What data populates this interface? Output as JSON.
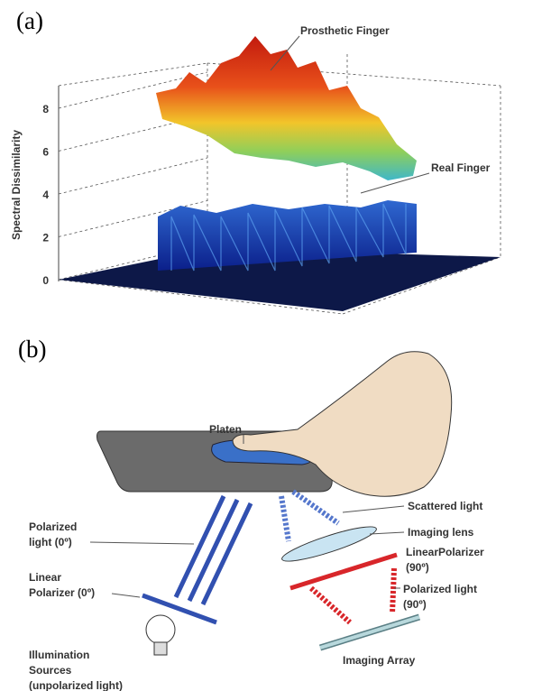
{
  "panel_a": {
    "label": "(a)",
    "y_label": "Spectral Dissimilarity",
    "yticks": [
      0,
      2,
      4,
      6,
      8
    ],
    "annotations": [
      "Prosthetic Finger",
      "Real Finger"
    ]
  },
  "panel_b": {
    "label": "(b)",
    "platen": "Platen",
    "polarized_light_0": [
      "Polarized",
      "light (0º)"
    ],
    "linear_polarizer_0": [
      "Linear",
      "Polarizer (0º)"
    ],
    "illumination": [
      "Illumination",
      "Sources",
      "(unpolarized light)"
    ],
    "scattered_light": "Scattered light",
    "imaging_lens": "Imaging lens",
    "linear_polarizer_90": [
      "LinearPolarizer",
      "(90º)"
    ],
    "polarized_light_90": [
      "Polarized light",
      "(90º)"
    ],
    "imaging_array": "Imaging Array"
  }
}
